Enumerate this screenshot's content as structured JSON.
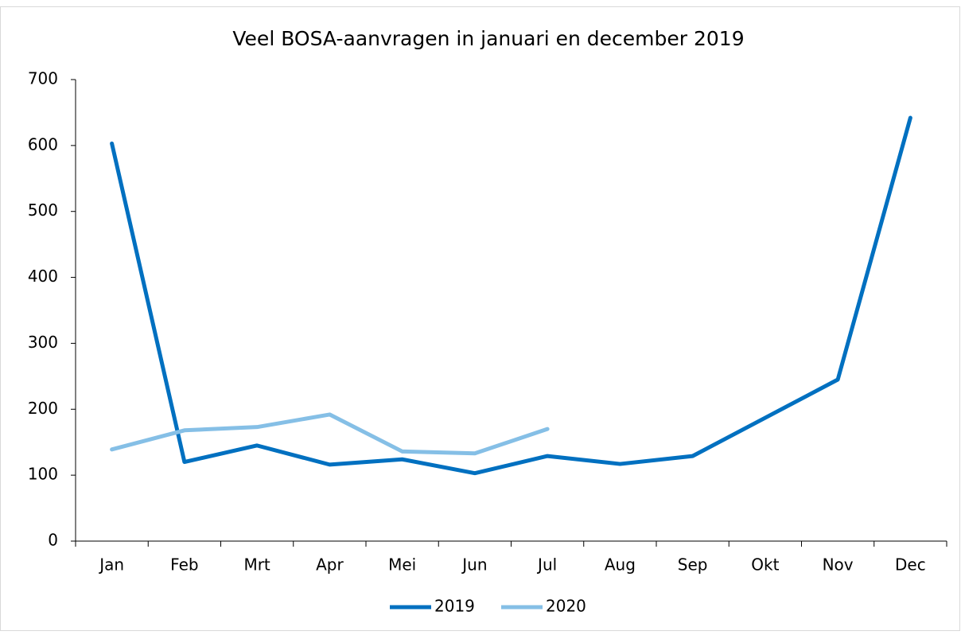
{
  "chart_data": {
    "type": "line",
    "title": "Veel BOSA-aanvragen in januari en december 2019",
    "categories": [
      "Jan",
      "Feb",
      "Mrt",
      "Apr",
      "Mei",
      "Jun",
      "Jul",
      "Aug",
      "Sep",
      "Okt",
      "Nov",
      "Dec"
    ],
    "series": [
      {
        "name": "2019",
        "color": "#0070c0",
        "values": [
          603,
          120,
          145,
          116,
          124,
          103,
          129,
          117,
          129,
          187,
          245,
          642
        ]
      },
      {
        "name": "2020",
        "color": "#85bfe6",
        "values": [
          139,
          168,
          173,
          192,
          136,
          133,
          170,
          null,
          null,
          null,
          null,
          null
        ]
      }
    ],
    "ylim": [
      0,
      700
    ],
    "yticks": [
      0,
      100,
      200,
      300,
      400,
      500,
      600,
      700
    ],
    "grid": false,
    "legend": "bottom"
  }
}
